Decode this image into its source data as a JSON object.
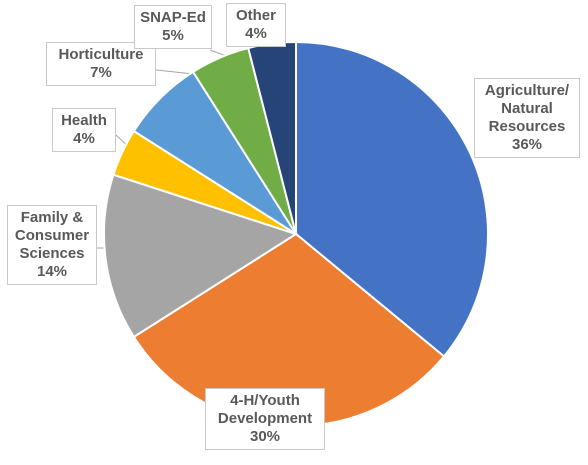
{
  "chart_data": {
    "type": "pie",
    "title": "",
    "start_angle_deg": 0,
    "direction": "clockwise",
    "slice_border_color": "#ffffff",
    "slices": [
      {
        "label_lines": [
          "Agriculture/",
          "Natural",
          "Resources"
        ],
        "value": 36,
        "pct_label": "36%",
        "color": "#4472C4"
      },
      {
        "label_lines": [
          "4-H/Youth",
          "Development"
        ],
        "value": 30,
        "pct_label": "30%",
        "color": "#ED7D31"
      },
      {
        "label_lines": [
          "Family &",
          "Consumer",
          "Sciences"
        ],
        "value": 14,
        "pct_label": "14%",
        "color": "#A5A5A5"
      },
      {
        "label_lines": [
          "Health"
        ],
        "value": 4,
        "pct_label": "4%",
        "color": "#FFC000"
      },
      {
        "label_lines": [
          "Horticulture"
        ],
        "value": 7,
        "pct_label": "7%",
        "color": "#5B9BD5"
      },
      {
        "label_lines": [
          "SNAP-Ed"
        ],
        "value": 5,
        "pct_label": "5%",
        "color": "#70AD47"
      },
      {
        "label_lines": [
          "Other"
        ],
        "value": 4,
        "pct_label": "4%",
        "color": "#264478"
      }
    ]
  }
}
